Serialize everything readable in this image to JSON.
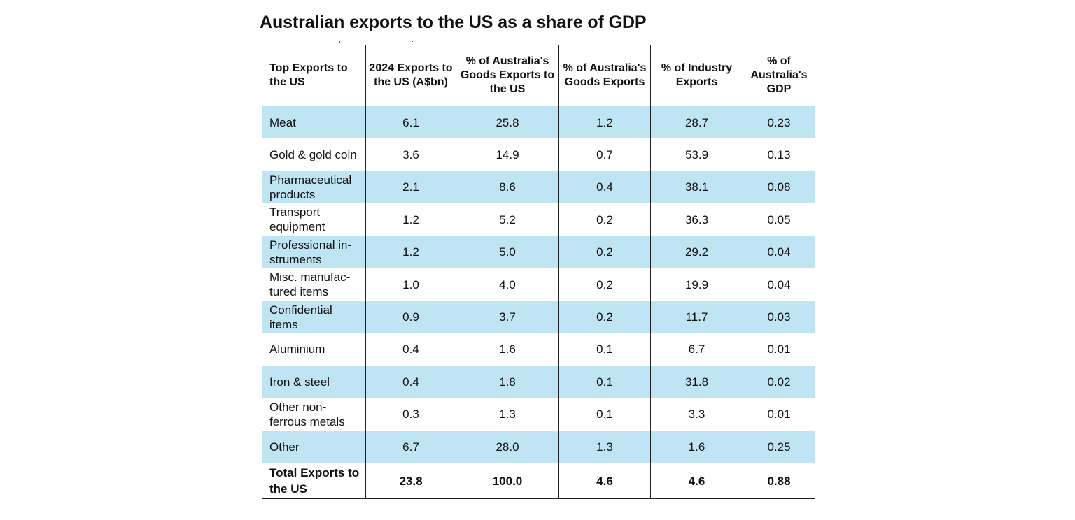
{
  "title": "Australian exports to the US as a share of GDP",
  "colors": {
    "shade": "#bfe4f3",
    "border": "#222222"
  },
  "table": {
    "headers": [
      "Top Exports to the US",
      "2024 Exports to the US (A$bn)",
      "% of Australia's Goods Exports to the US",
      "% of Australia's Goods Exports",
      "% of Industry Exports",
      "% of Australia's GDP"
    ],
    "rows": [
      [
        "Meat",
        "6.1",
        "25.8",
        "1.2",
        "28.7",
        "0.23"
      ],
      [
        "Gold & gold coin",
        "3.6",
        "14.9",
        "0.7",
        "53.9",
        "0.13"
      ],
      [
        "Pharmaceutical products",
        "2.1",
        "8.6",
        "0.4",
        "38.1",
        "0.08"
      ],
      [
        "Transport equipment",
        "1.2",
        "5.2",
        "0.2",
        "36.3",
        "0.05"
      ],
      [
        "Professional in-struments",
        "1.2",
        "5.0",
        "0.2",
        "29.2",
        "0.04"
      ],
      [
        "Misc. manufac-tured items",
        "1.0",
        "4.0",
        "0.2",
        "19.9",
        "0.04"
      ],
      [
        "Confidential items",
        "0.9",
        "3.7",
        "0.2",
        "11.7",
        "0.03"
      ],
      [
        "Aluminium",
        "0.4",
        "1.6",
        "0.1",
        "6.7",
        "0.01"
      ],
      [
        "Iron & steel",
        "0.4",
        "1.8",
        "0.1",
        "31.8",
        "0.02"
      ],
      [
        "Other non-ferrous metals",
        "0.3",
        "1.3",
        "0.1",
        "3.3",
        "0.01"
      ],
      [
        "Other",
        "6.7",
        "28.0",
        "1.3",
        "1.6",
        "0.25"
      ]
    ],
    "total": [
      "Total Exports to the US",
      "23.8",
      "100.0",
      "4.6",
      "4.6",
      "0.88"
    ]
  }
}
